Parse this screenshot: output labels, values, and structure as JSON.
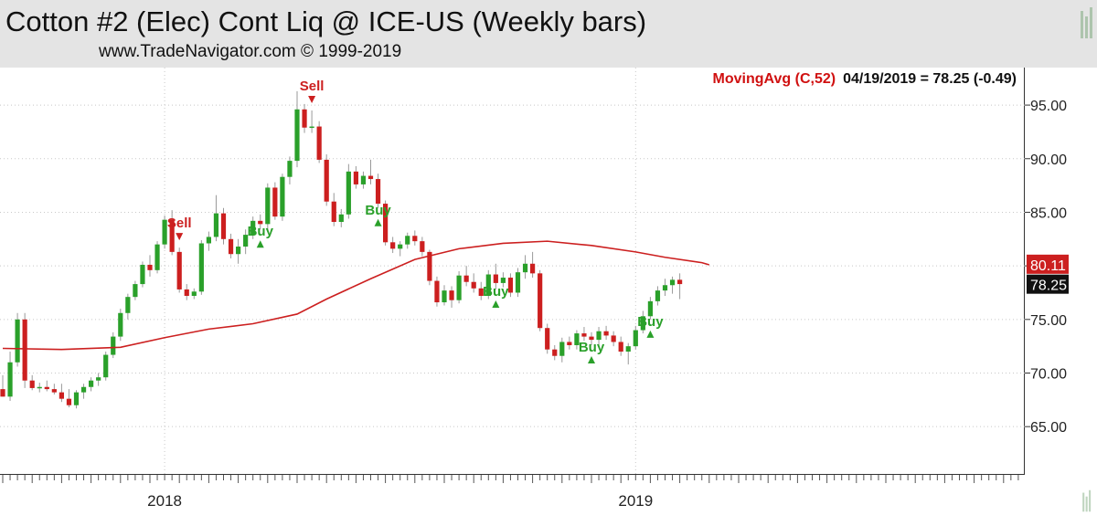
{
  "header": {
    "title": "Cotton #2 (Elec) Cont Liq @ ICE-US  (Weekly bars)",
    "subtitle": "www.TradeNavigator.com © 1999-2019"
  },
  "indicator": {
    "name": "MovingAvg (C,52)",
    "readout": "04/19/2019 = 78.25 (-0.49)",
    "color": "#d01010"
  },
  "price_tags": {
    "ma_value": "80.11",
    "last_value": "78.25"
  },
  "colors": {
    "up": "#2aa02a",
    "down": "#cc1f1f",
    "ma": "#cc1f1f",
    "buy": "#2aa02a",
    "sell": "#cc1f1f",
    "grid": "#c8c8c8"
  },
  "chart_data": {
    "type": "candlestick",
    "title": "Cotton #2 (Elec) Cont Liq @ ICE-US  (Weekly bars)",
    "y_ticks": [
      "95.00",
      "90.00",
      "85.00",
      "80.00",
      "75.00",
      "70.00",
      "65.00"
    ],
    "ylim": [
      60.5,
      98.5
    ],
    "x_labels": [
      {
        "label": "2018",
        "index": 22
      },
      {
        "label": "2019",
        "index": 86
      }
    ],
    "n_slots": 136,
    "grid": true,
    "candles": [
      [
        68.5,
        69.8,
        67.8,
        67.8
      ],
      [
        67.8,
        72.0,
        67.4,
        71.0
      ],
      [
        71.0,
        75.6,
        70.6,
        75.0
      ],
      [
        75.0,
        75.6,
        68.6,
        69.3
      ],
      [
        69.3,
        69.8,
        68.4,
        68.6
      ],
      [
        68.6,
        69.1,
        68.2,
        68.7
      ],
      [
        68.7,
        69.3,
        68.3,
        68.5
      ],
      [
        68.5,
        69.0,
        68.0,
        68.2
      ],
      [
        68.2,
        69.0,
        67.3,
        67.6
      ],
      [
        67.6,
        68.5,
        66.8,
        67.0
      ],
      [
        67.0,
        68.4,
        66.7,
        68.2
      ],
      [
        68.2,
        69.0,
        67.6,
        68.7
      ],
      [
        68.7,
        69.6,
        68.3,
        69.3
      ],
      [
        69.3,
        70.0,
        68.8,
        69.6
      ],
      [
        69.6,
        72.0,
        69.3,
        71.7
      ],
      [
        71.7,
        73.8,
        71.4,
        73.4
      ],
      [
        73.4,
        76.0,
        73.0,
        75.6
      ],
      [
        75.6,
        77.4,
        75.0,
        77.1
      ],
      [
        77.1,
        78.6,
        76.8,
        78.3
      ],
      [
        78.3,
        80.4,
        78.0,
        80.1
      ],
      [
        80.1,
        81.0,
        79.0,
        79.6
      ],
      [
        79.6,
        82.3,
        79.3,
        82.0
      ],
      [
        82.0,
        84.7,
        81.6,
        84.3
      ],
      [
        84.3,
        85.2,
        81.0,
        81.3
      ],
      [
        81.3,
        81.7,
        77.5,
        77.8
      ],
      [
        77.8,
        78.3,
        76.8,
        77.2
      ],
      [
        77.2,
        77.9,
        76.9,
        77.6
      ],
      [
        77.6,
        82.4,
        77.3,
        82.1
      ],
      [
        82.1,
        83.2,
        81.4,
        82.7
      ],
      [
        82.7,
        86.6,
        82.3,
        84.9
      ],
      [
        84.9,
        85.4,
        82.0,
        82.5
      ],
      [
        82.5,
        83.0,
        80.7,
        81.1
      ],
      [
        81.1,
        82.5,
        80.2,
        81.8
      ],
      [
        81.8,
        83.4,
        81.1,
        82.9
      ],
      [
        82.9,
        84.6,
        82.5,
        84.2
      ],
      [
        84.2,
        84.8,
        83.4,
        83.9
      ],
      [
        83.9,
        87.7,
        83.4,
        87.3
      ],
      [
        87.3,
        87.8,
        84.3,
        84.6
      ],
      [
        84.6,
        88.6,
        84.2,
        88.3
      ],
      [
        88.3,
        90.2,
        87.6,
        89.8
      ],
      [
        89.8,
        96.3,
        89.2,
        94.6
      ],
      [
        94.6,
        95.1,
        92.4,
        92.9
      ],
      [
        92.9,
        94.5,
        92.4,
        93.0
      ],
      [
        93.0,
        93.5,
        89.6,
        89.9
      ],
      [
        89.9,
        90.4,
        85.6,
        86.0
      ],
      [
        86.0,
        86.8,
        83.7,
        84.1
      ],
      [
        84.1,
        85.3,
        83.6,
        84.8
      ],
      [
        84.8,
        89.5,
        84.4,
        88.8
      ],
      [
        88.8,
        89.3,
        87.2,
        87.6
      ],
      [
        87.6,
        88.8,
        87.2,
        88.4
      ],
      [
        88.4,
        89.9,
        87.6,
        88.1
      ],
      [
        88.1,
        88.6,
        85.4,
        85.8
      ],
      [
        85.8,
        86.1,
        81.9,
        82.2
      ],
      [
        82.2,
        82.7,
        81.2,
        81.6
      ],
      [
        81.6,
        82.3,
        80.9,
        82.0
      ],
      [
        82.0,
        83.1,
        81.6,
        82.8
      ],
      [
        82.8,
        83.3,
        81.9,
        82.3
      ],
      [
        82.3,
        82.7,
        80.9,
        81.3
      ],
      [
        81.3,
        81.5,
        78.2,
        78.6
      ],
      [
        78.6,
        79.0,
        76.2,
        76.6
      ],
      [
        76.6,
        78.2,
        76.3,
        77.7
      ],
      [
        77.7,
        78.1,
        76.1,
        76.8
      ],
      [
        76.8,
        79.5,
        76.5,
        79.1
      ],
      [
        79.1,
        80.0,
        78.1,
        78.5
      ],
      [
        78.5,
        79.3,
        77.5,
        77.9
      ],
      [
        77.9,
        78.5,
        76.8,
        77.2
      ],
      [
        77.2,
        79.6,
        76.9,
        79.2
      ],
      [
        79.2,
        80.2,
        77.8,
        78.4
      ],
      [
        78.4,
        79.4,
        78.0,
        78.9
      ],
      [
        78.9,
        79.3,
        77.1,
        77.5
      ],
      [
        77.5,
        79.8,
        77.1,
        79.4
      ],
      [
        79.4,
        81.0,
        78.8,
        80.2
      ],
      [
        80.2,
        81.3,
        78.9,
        79.3
      ],
      [
        79.3,
        79.6,
        73.9,
        74.2
      ],
      [
        74.2,
        74.6,
        71.8,
        72.2
      ],
      [
        72.2,
        72.6,
        71.2,
        71.6
      ],
      [
        71.6,
        73.3,
        71.0,
        72.9
      ],
      [
        72.9,
        73.4,
        72.2,
        72.6
      ],
      [
        72.6,
        74.0,
        72.2,
        73.7
      ],
      [
        73.7,
        74.3,
        73.0,
        73.4
      ],
      [
        73.4,
        73.8,
        72.6,
        73.1
      ],
      [
        73.1,
        74.3,
        72.6,
        73.9
      ],
      [
        73.9,
        74.4,
        73.1,
        73.5
      ],
      [
        73.5,
        73.9,
        72.5,
        72.9
      ],
      [
        72.9,
        73.4,
        71.6,
        72.0
      ],
      [
        72.0,
        72.8,
        70.8,
        72.5
      ],
      [
        72.5,
        74.4,
        72.2,
        74.0
      ],
      [
        74.0,
        75.8,
        73.7,
        75.3
      ],
      [
        75.3,
        77.1,
        75.0,
        76.7
      ],
      [
        76.7,
        78.1,
        76.3,
        77.7
      ],
      [
        77.7,
        78.8,
        77.2,
        78.2
      ],
      [
        78.2,
        79.0,
        77.4,
        78.7
      ],
      [
        78.7,
        79.3,
        76.9,
        78.3
      ]
    ],
    "candle_slots": [
      0,
      3,
      5,
      7,
      10,
      12,
      15,
      17,
      20,
      22,
      25,
      27,
      30,
      32,
      35,
      37,
      40,
      42,
      45,
      47,
      50,
      52,
      55,
      57,
      60,
      62,
      65,
      67,
      70,
      72,
      75,
      77,
      80,
      82,
      85,
      87,
      90,
      92,
      95,
      97,
      100,
      102,
      105,
      107,
      110,
      112,
      115,
      117,
      120,
      122,
      125,
      127,
      130,
      132,
      135,
      137,
      140,
      142,
      145,
      147,
      150,
      152,
      155,
      157,
      160,
      162,
      165,
      167,
      170,
      172,
      175,
      177,
      180,
      182,
      185,
      187,
      190,
      192,
      195,
      197,
      200,
      202,
      205,
      207,
      210,
      212,
      215,
      217,
      220,
      222,
      225,
      227,
      230
    ],
    "slot_scale": 0.5,
    "moving_average": {
      "name": "MovingAvg (C,52)",
      "points": [
        [
          0,
          72.3
        ],
        [
          8,
          72.2
        ],
        [
          16,
          72.4
        ],
        [
          22,
          73.3
        ],
        [
          28,
          74.1
        ],
        [
          34,
          74.6
        ],
        [
          40,
          75.5
        ],
        [
          44,
          76.9
        ],
        [
          50,
          78.8
        ],
        [
          56,
          80.6
        ],
        [
          62,
          81.6
        ],
        [
          68,
          82.1
        ],
        [
          74,
          82.3
        ],
        [
          80,
          81.9
        ],
        [
          86,
          81.3
        ],
        [
          90,
          80.8
        ],
        [
          95,
          80.3
        ],
        [
          96,
          80.1
        ]
      ]
    },
    "signals": [
      {
        "type": "Sell",
        "index": 24
      },
      {
        "type": "Buy",
        "index": 35
      },
      {
        "type": "Sell",
        "index": 42
      },
      {
        "type": "Buy",
        "index": 51
      },
      {
        "type": "Buy",
        "index": 67
      },
      {
        "type": "Buy",
        "index": 80
      },
      {
        "type": "Buy",
        "index": 88
      },
      {
        "type": "Sell",
        "index": 97
      }
    ]
  }
}
